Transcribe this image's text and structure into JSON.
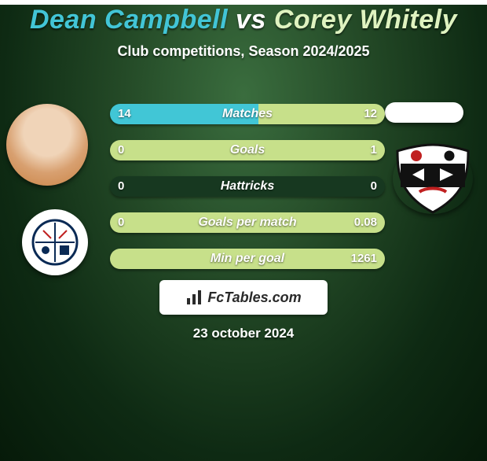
{
  "title": {
    "player_a": "Dean Campbell",
    "connector": "vs",
    "player_b": "Corey Whitely"
  },
  "subtitle": "Club competitions, Season 2024/2025",
  "colors": {
    "player_a_accent": "#42c5d6",
    "player_b_accent": "#dff3c0",
    "bar_a": "#41c6d6",
    "bar_b": "#c7e08a",
    "track": "#173820"
  },
  "stats": [
    {
      "label": "Matches",
      "a": "14",
      "b": "12",
      "a_pct": 54,
      "b_pct": 46
    },
    {
      "label": "Goals",
      "a": "0",
      "b": "1",
      "a_pct": 0,
      "b_pct": 100
    },
    {
      "label": "Hattricks",
      "a": "0",
      "b": "0",
      "a_pct": 0,
      "b_pct": 0
    },
    {
      "label": "Goals per match",
      "a": "0",
      "b": "0.08",
      "a_pct": 0,
      "b_pct": 100
    },
    {
      "label": "Min per goal",
      "a": "",
      "b": "1261",
      "a_pct": 0,
      "b_pct": 100
    }
  ],
  "branding": "FcTables.com",
  "date": "23 october 2024"
}
